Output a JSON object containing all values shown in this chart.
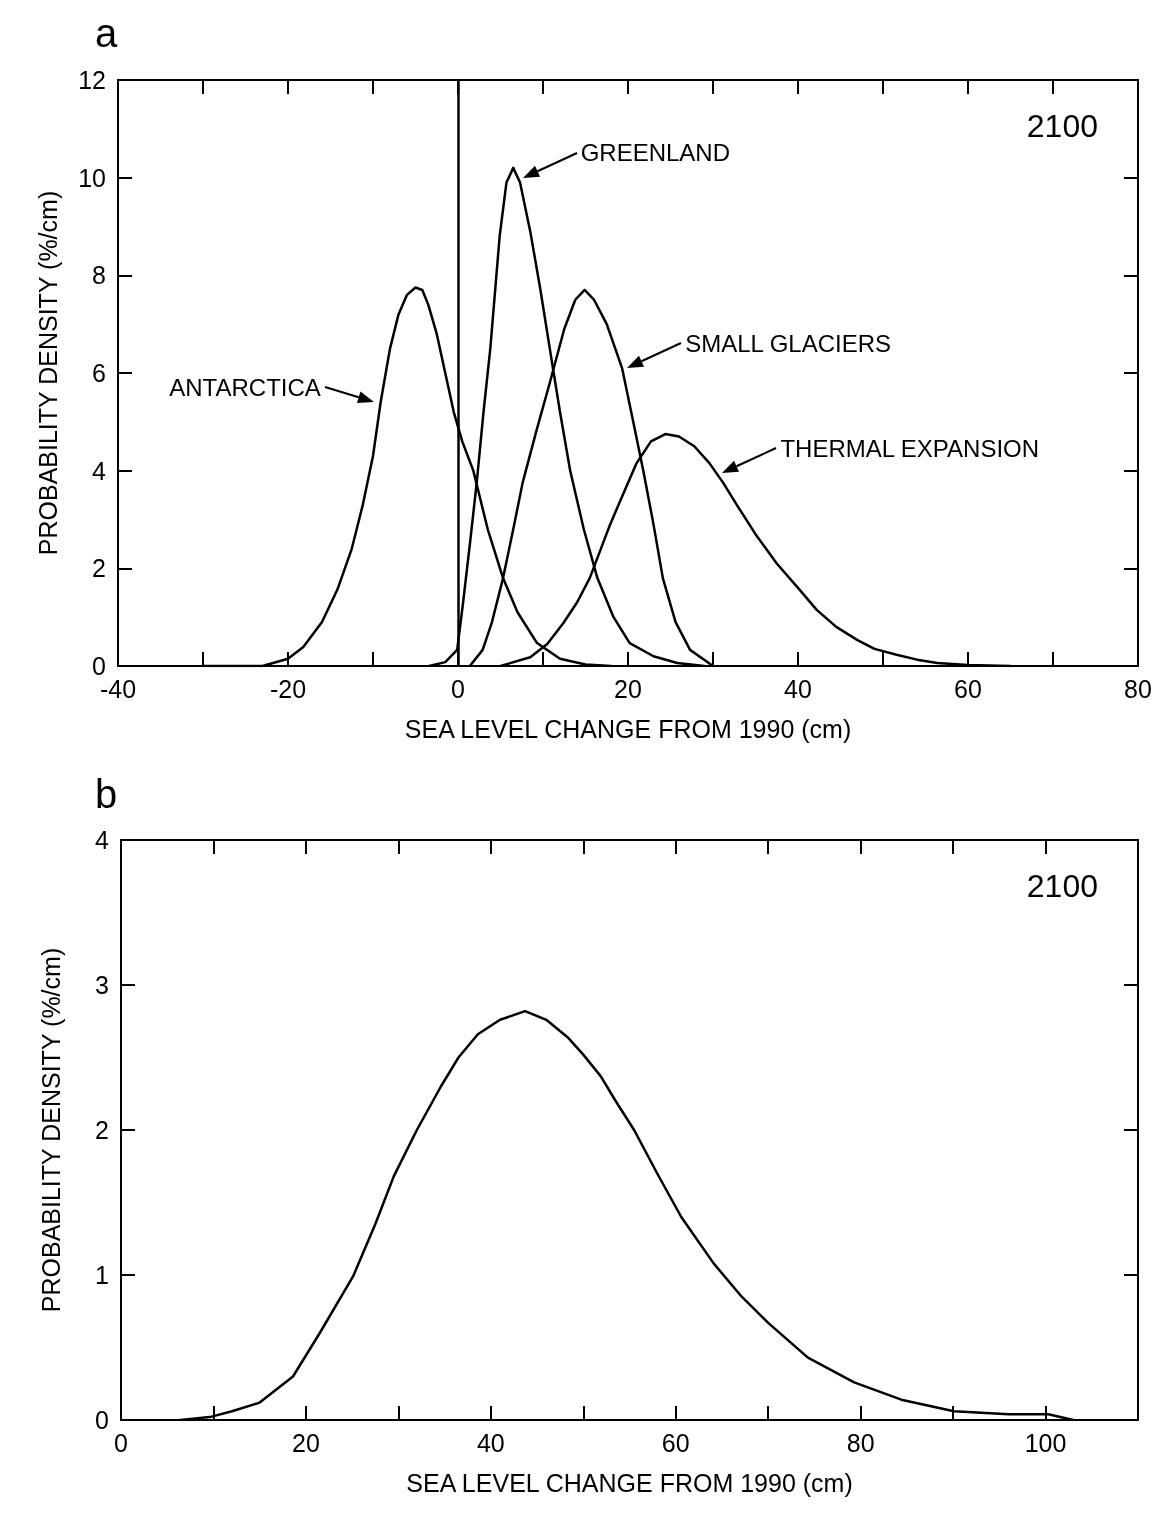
{
  "chart_data": [
    {
      "type": "line",
      "title": "a",
      "xlabel": "SEA LEVEL CHANGE FROM 1990 (cm)",
      "ylabel": "PROBABILITY DENSITY (%/cm)",
      "annotations": [
        "2100",
        {
          "text": "ANTARCTICA",
          "x": -9.2,
          "y": 5.4
        },
        {
          "text": "GREENLAND",
          "x": 6.9,
          "y": 10.0
        },
        {
          "text": "SMALL GLACIERS",
          "x": 19.2,
          "y": 6.1
        },
        {
          "text": "THERMAL EXPANSION",
          "x": 30.4,
          "y": 3.95
        }
      ],
      "series": [
        {
          "color": "#000000",
          "x": [
            -30,
            -23,
            -20,
            -18.2,
            -16,
            -14.2,
            -12.5,
            -11.2,
            -10,
            -9.1,
            -8,
            -7,
            -6,
            -5,
            -4.2,
            -3.5,
            -2.5,
            -1.5,
            -0.5,
            0.5,
            1.8,
            3.5,
            5.3,
            7,
            9.3,
            12,
            15,
            18
          ],
          "values": [
            0,
            0,
            0.15,
            0.39,
            0.9,
            1.56,
            2.4,
            3.3,
            4.3,
            5.4,
            6.5,
            7.2,
            7.6,
            7.75,
            7.7,
            7.4,
            6.8,
            6.0,
            5.2,
            4.6,
            4.0,
            2.8,
            1.8,
            1.1,
            0.47,
            0.15,
            0.03,
            0
          ]
        },
        {
          "color": "#000000",
          "x": [
            -3.4,
            -1.5,
            -0.1,
            0.6,
            1.4,
            2.2,
            3,
            3.8,
            4.9,
            5.7,
            6.5,
            7.3,
            8.5,
            9.7,
            10.8,
            12,
            13.2,
            14.8,
            16.4,
            18.3,
            20.2,
            23,
            25.8,
            29
          ],
          "values": [
            0,
            0.08,
            0.33,
            1.3,
            2.5,
            3.75,
            5.2,
            6.5,
            8.8,
            9.9,
            10.2,
            9.9,
            8.9,
            7.7,
            6.5,
            5.2,
            4.0,
            2.8,
            1.8,
            1.0,
            0.47,
            0.2,
            0.06,
            0
          ]
        },
        {
          "color": "#000000",
          "x": [
            1.4,
            2.9,
            4,
            5.3,
            6.5,
            7.6,
            9.2,
            10.8,
            12.5,
            13.8,
            14.9,
            16,
            17.5,
            19.3,
            20.5,
            21.8,
            23,
            24.1,
            25.6,
            27.3,
            30
          ],
          "values": [
            0,
            0.33,
            0.9,
            1.8,
            2.8,
            3.75,
            4.8,
            5.8,
            6.9,
            7.5,
            7.7,
            7.5,
            7.0,
            6.1,
            5.1,
            4.0,
            2.9,
            1.8,
            0.9,
            0.33,
            0
          ]
        },
        {
          "color": "#000000",
          "x": [
            5,
            8.5,
            10.5,
            12.4,
            14,
            15.5,
            17.9,
            19.5,
            21,
            22.7,
            24.4,
            26,
            27.8,
            29.6,
            31.2,
            32.8,
            35,
            37.5,
            40,
            42.2,
            44.5,
            47,
            49,
            51.6,
            54,
            56.4,
            60,
            65
          ],
          "values": [
            0,
            0.18,
            0.45,
            0.88,
            1.3,
            1.8,
            2.9,
            3.55,
            4.15,
            4.6,
            4.75,
            4.7,
            4.5,
            4.15,
            3.75,
            3.3,
            2.7,
            2.1,
            1.6,
            1.15,
            0.8,
            0.53,
            0.35,
            0.23,
            0.13,
            0.06,
            0.02,
            0
          ]
        }
      ],
      "ref_lines": [
        {
          "axis": "x",
          "value": 0,
          "color": "#000000"
        }
      ],
      "xlim": [
        -40,
        80
      ],
      "xticks": [
        -40,
        {
          "value": -30,
          "label": null
        },
        -20,
        {
          "value": -10,
          "label": null
        },
        0,
        {
          "value": 10,
          "label": null
        },
        20,
        {
          "value": 30,
          "label": null
        },
        40,
        {
          "value": 50,
          "label": null
        },
        60,
        {
          "value": 70,
          "label": null
        },
        80
      ],
      "ylim": [
        0,
        12
      ],
      "yticks": [
        0,
        2,
        4,
        6,
        8,
        10,
        12
      ],
      "grid": false
    },
    {
      "type": "line",
      "title": "b",
      "xlabel": "SEA LEVEL CHANGE FROM 1990 (cm)",
      "ylabel": "PROBABILITY DENSITY (%/cm)",
      "annotations": [
        "2100"
      ],
      "series": [
        {
          "color": "#000000",
          "x": [
            6.4,
            9.6,
            12,
            15,
            18.6,
            21.5,
            25.1,
            27.5,
            29.5,
            32,
            34.6,
            36.5,
            38.6,
            41,
            43.7,
            46,
            48.3,
            50,
            51.9,
            53.5,
            55.5,
            58,
            60.6,
            64.1,
            67,
            70,
            74.3,
            79.3,
            84.4,
            90.1,
            96,
            100.3,
            103
          ],
          "values": [
            0,
            0.02,
            0.06,
            0.12,
            0.3,
            0.6,
            0.99,
            1.35,
            1.68,
            2.0,
            2.3,
            2.5,
            2.66,
            2.76,
            2.82,
            2.76,
            2.64,
            2.52,
            2.37,
            2.2,
            2.0,
            1.7,
            1.4,
            1.08,
            0.86,
            0.67,
            0.43,
            0.26,
            0.14,
            0.06,
            0.04,
            0.04,
            0
          ]
        }
      ],
      "xlim": [
        0,
        110
      ],
      "xticks": [
        0,
        {
          "value": 10,
          "label": null
        },
        20,
        {
          "value": 30,
          "label": null
        },
        40,
        {
          "value": 50,
          "label": null
        },
        60,
        {
          "value": 70,
          "label": null
        },
        80,
        {
          "value": 90,
          "label": null
        },
        100,
        {
          "value": 110,
          "label": null
        }
      ],
      "ylim": [
        0,
        4
      ],
      "yticks": [
        0,
        1,
        2,
        3,
        4
      ],
      "grid": false
    }
  ]
}
